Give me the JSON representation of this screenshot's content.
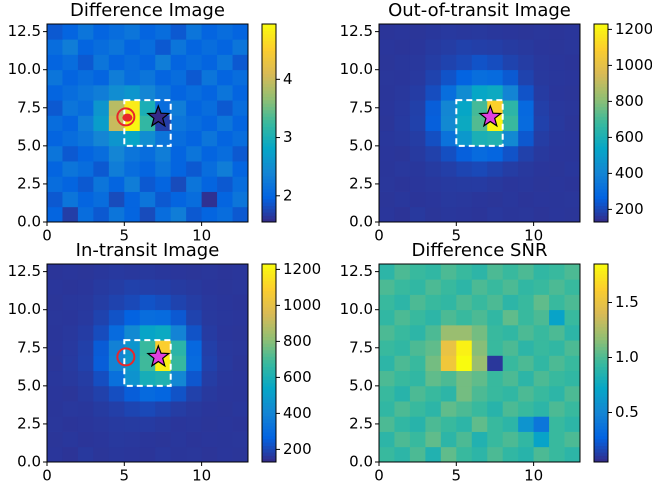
{
  "chart_data": [
    {
      "type": "heatmap",
      "title": "Difference Image",
      "colormap": "parula",
      "xlim": [
        0,
        13
      ],
      "ylim": [
        0,
        13
      ],
      "xticks": [
        0,
        5,
        10
      ],
      "yticks": [
        {
          "value": 0,
          "label": "0.0"
        },
        2.5,
        {
          "value": 5,
          "label": "5.0"
        },
        7.5,
        {
          "value": 10,
          "label": "10.0"
        },
        12.5
      ],
      "clim": [
        1.55,
        4.95
      ],
      "cticks": [
        2,
        3,
        4
      ],
      "aperture": {
        "x": [
          5,
          8
        ],
        "y": [
          5,
          8
        ],
        "color": "#ffffff"
      },
      "markers": [
        {
          "kind": "circle",
          "x": 5.1,
          "y": 6.9,
          "color": "#e8262a"
        },
        {
          "kind": "dot",
          "x": 5.2,
          "y": 6.85,
          "color": "#e8262a"
        },
        {
          "kind": "star",
          "x": 7.2,
          "y": 6.9,
          "color": "#352a87"
        }
      ],
      "z": [
        [
          2.0,
          1.7,
          2.1,
          1.9,
          2.2,
          2.0,
          1.8,
          2.1,
          2.3,
          1.9,
          2.0,
          2.1,
          1.9
        ],
        [
          1.9,
          2.2,
          2.0,
          2.1,
          1.8,
          2.0,
          2.2,
          1.9,
          2.0,
          2.1,
          1.6,
          2.0,
          2.2
        ],
        [
          2.1,
          2.0,
          1.9,
          2.2,
          2.0,
          2.3,
          1.9,
          2.0,
          1.8,
          2.2,
          2.0,
          1.9,
          2.1
        ],
        [
          2.0,
          2.2,
          2.1,
          1.9,
          2.3,
          2.1,
          2.0,
          2.2,
          2.0,
          1.9,
          2.1,
          2.3,
          2.0
        ],
        [
          2.2,
          1.9,
          2.0,
          2.1,
          2.4,
          2.2,
          2.1,
          2.3,
          2.0,
          2.2,
          2.0,
          2.1,
          1.9
        ],
        [
          2.0,
          2.1,
          2.2,
          2.4,
          2.6,
          2.8,
          2.5,
          2.2,
          2.1,
          2.0,
          2.2,
          2.0,
          2.1
        ],
        [
          2.1,
          2.0,
          2.3,
          2.7,
          4.0,
          4.9,
          3.2,
          1.7,
          2.2,
          2.1,
          2.0,
          2.2,
          2.0
        ],
        [
          1.9,
          2.2,
          2.1,
          2.6,
          3.9,
          4.8,
          3.0,
          2.1,
          2.3,
          2.0,
          2.1,
          1.9,
          2.1
        ],
        [
          2.0,
          2.1,
          2.2,
          2.3,
          2.5,
          2.6,
          2.4,
          2.2,
          2.0,
          2.1,
          2.0,
          2.2,
          2.0
        ],
        [
          2.2,
          2.0,
          2.1,
          2.0,
          2.3,
          2.1,
          2.2,
          2.0,
          2.1,
          1.9,
          2.2,
          2.0,
          2.1
        ],
        [
          2.0,
          2.1,
          1.9,
          2.2,
          2.0,
          2.1,
          2.0,
          2.3,
          2.0,
          2.1,
          2.0,
          2.2,
          1.9
        ],
        [
          2.1,
          2.3,
          2.0,
          2.1,
          2.2,
          2.0,
          2.1,
          1.9,
          2.2,
          2.0,
          2.1,
          2.0,
          2.2
        ],
        [
          1.9,
          2.0,
          2.2,
          2.0,
          2.1,
          2.2,
          2.0,
          2.1,
          1.9,
          2.2,
          2.0,
          2.1,
          2.0
        ]
      ]
    },
    {
      "type": "heatmap",
      "title": "Out-of-transit Image",
      "colormap": "parula",
      "xlim": [
        0,
        13
      ],
      "ylim": [
        0,
        13
      ],
      "xticks": [
        0,
        5,
        10
      ],
      "yticks": [
        {
          "value": 0,
          "label": "0.0"
        },
        2.5,
        {
          "value": 5,
          "label": "5.0"
        },
        7.5,
        {
          "value": 10,
          "label": "10.0"
        },
        12.5
      ],
      "clim": [
        130,
        1230
      ],
      "cticks": [
        200,
        400,
        600,
        800,
        1000,
        1200
      ],
      "aperture": {
        "x": [
          5,
          8
        ],
        "y": [
          5,
          8
        ],
        "color": "#ffffff"
      },
      "markers": [
        {
          "kind": "star",
          "x": 7.2,
          "y": 6.9,
          "color": "#e040e0"
        }
      ],
      "z": [
        [
          160,
          155,
          165,
          158,
          162,
          160,
          157,
          163,
          159,
          161,
          156,
          160,
          158
        ],
        [
          158,
          162,
          157,
          160,
          165,
          163,
          160,
          158,
          162,
          157,
          160,
          159,
          161
        ],
        [
          161,
          157,
          160,
          163,
          168,
          170,
          172,
          165,
          160,
          162,
          158,
          160,
          157
        ],
        [
          159,
          163,
          162,
          170,
          180,
          195,
          205,
          190,
          175,
          165,
          160,
          158,
          162
        ],
        [
          160,
          158,
          168,
          185,
          220,
          260,
          300,
          280,
          230,
          185,
          165,
          160,
          159
        ],
        [
          162,
          165,
          175,
          220,
          330,
          480,
          600,
          620,
          420,
          240,
          175,
          162,
          160
        ],
        [
          158,
          168,
          185,
          260,
          420,
          560,
          720,
          1210,
          680,
          300,
          185,
          165,
          158
        ],
        [
          160,
          166,
          182,
          255,
          410,
          540,
          700,
          1100,
          650,
          290,
          180,
          163,
          161
        ],
        [
          159,
          164,
          174,
          215,
          310,
          430,
          540,
          560,
          400,
          230,
          172,
          160,
          158
        ],
        [
          161,
          160,
          166,
          190,
          230,
          270,
          310,
          300,
          245,
          190,
          165,
          162,
          160
        ],
        [
          158,
          162,
          163,
          175,
          190,
          205,
          230,
          215,
          190,
          175,
          163,
          160,
          157
        ],
        [
          160,
          157,
          160,
          168,
          175,
          185,
          180,
          178,
          170,
          165,
          160,
          158,
          161
        ],
        [
          157,
          160,
          158,
          162,
          166,
          163,
          165,
          162,
          160,
          158,
          161,
          157,
          160
        ]
      ]
    },
    {
      "type": "heatmap",
      "title": "In-transit Image",
      "colormap": "parula",
      "xlim": [
        0,
        13
      ],
      "ylim": [
        0,
        13
      ],
      "xticks": [
        0,
        5,
        10
      ],
      "yticks": [
        {
          "value": 0,
          "label": "0.0"
        },
        2.5,
        {
          "value": 5,
          "label": "5.0"
        },
        7.5,
        {
          "value": 10,
          "label": "10.0"
        },
        12.5
      ],
      "clim": [
        130,
        1230
      ],
      "cticks": [
        200,
        400,
        600,
        800,
        1000,
        1200
      ],
      "aperture": {
        "x": [
          5,
          8
        ],
        "y": [
          5,
          8
        ],
        "color": "#ffffff"
      },
      "markers": [
        {
          "kind": "circle",
          "x": 5.1,
          "y": 6.9,
          "color": "#e8262a"
        },
        {
          "kind": "star",
          "x": 7.2,
          "y": 6.9,
          "color": "#e040e0"
        }
      ],
      "z": [
        [
          160,
          155,
          165,
          158,
          162,
          160,
          157,
          163,
          159,
          161,
          156,
          160,
          158
        ],
        [
          158,
          162,
          157,
          160,
          165,
          163,
          160,
          158,
          162,
          157,
          160,
          159,
          161
        ],
        [
          161,
          157,
          160,
          163,
          168,
          170,
          172,
          165,
          160,
          162,
          158,
          160,
          157
        ],
        [
          159,
          163,
          162,
          170,
          180,
          195,
          205,
          190,
          175,
          165,
          160,
          158,
          162
        ],
        [
          160,
          158,
          168,
          185,
          218,
          255,
          295,
          278,
          228,
          185,
          165,
          160,
          159
        ],
        [
          162,
          165,
          175,
          218,
          320,
          460,
          590,
          615,
          415,
          238,
          175,
          162,
          160
        ],
        [
          158,
          168,
          185,
          255,
          400,
          480,
          690,
          1200,
          675,
          298,
          185,
          165,
          158
        ],
        [
          160,
          166,
          182,
          250,
          390,
          470,
          680,
          1090,
          645,
          288,
          180,
          163,
          161
        ],
        [
          159,
          164,
          174,
          212,
          300,
          420,
          530,
          555,
          398,
          228,
          172,
          160,
          158
        ],
        [
          161,
          160,
          166,
          190,
          228,
          268,
          308,
          298,
          244,
          190,
          165,
          162,
          160
        ],
        [
          158,
          162,
          163,
          175,
          190,
          205,
          228,
          214,
          190,
          175,
          163,
          160,
          157
        ],
        [
          160,
          157,
          160,
          168,
          175,
          185,
          180,
          178,
          170,
          165,
          160,
          158,
          161
        ],
        [
          157,
          160,
          158,
          162,
          166,
          163,
          165,
          162,
          160,
          158,
          161,
          157,
          160
        ]
      ]
    },
    {
      "type": "heatmap",
      "title": "Difference SNR",
      "colormap": "parula",
      "xlim": [
        0,
        13
      ],
      "ylim": [
        0,
        13
      ],
      "xticks": [
        0,
        5,
        10
      ],
      "yticks": [
        {
          "value": 0,
          "label": "0.0"
        },
        2.5,
        {
          "value": 5,
          "label": "5.0"
        },
        7.5,
        {
          "value": 10,
          "label": "10.0"
        },
        12.5
      ],
      "clim": [
        0.05,
        1.85
      ],
      "cticks": [
        0.5,
        {
          "value": 1,
          "label": "1.0"
        },
        1.5
      ],
      "markers": [],
      "z": [
        [
          0.95,
          0.9,
          1.0,
          0.85,
          1.05,
          0.95,
          0.9,
          1.0,
          0.92,
          0.88,
          1.0,
          0.95,
          0.9
        ],
        [
          0.9,
          1.0,
          0.95,
          1.05,
          0.9,
          1.0,
          0.85,
          0.95,
          1.0,
          0.92,
          0.7,
          0.95,
          1.0
        ],
        [
          1.0,
          0.92,
          0.88,
          1.0,
          0.95,
          0.9,
          1.05,
          0.95,
          0.9,
          0.6,
          0.4,
          0.95,
          0.9
        ],
        [
          0.92,
          1.0,
          0.95,
          0.9,
          1.05,
          1.0,
          0.95,
          0.88,
          1.0,
          0.95,
          0.9,
          1.0,
          0.95
        ],
        [
          0.95,
          0.88,
          1.0,
          0.95,
          0.9,
          1.1,
          1.0,
          0.95,
          0.92,
          1.0,
          0.95,
          0.9,
          1.0
        ],
        [
          1.0,
          0.95,
          0.92,
          1.05,
          1.0,
          1.1,
          1.05,
          0.95,
          1.0,
          0.9,
          1.0,
          0.95,
          0.92
        ],
        [
          0.9,
          1.0,
          0.95,
          1.1,
          1.55,
          1.85,
          1.2,
          0.1,
          0.95,
          1.0,
          0.92,
          1.0,
          0.95
        ],
        [
          0.95,
          0.92,
          1.0,
          1.05,
          1.5,
          1.8,
          1.15,
          0.95,
          1.0,
          0.9,
          0.95,
          0.92,
          1.0
        ],
        [
          1.0,
          0.95,
          0.9,
          1.0,
          1.2,
          1.2,
          1.1,
          0.95,
          0.92,
          1.0,
          0.95,
          1.0,
          0.9
        ],
        [
          0.92,
          1.0,
          0.95,
          0.9,
          1.0,
          0.95,
          1.0,
          0.92,
          1.05,
          0.95,
          1.0,
          0.7,
          0.95
        ],
        [
          0.95,
          0.9,
          1.0,
          0.95,
          0.92,
          1.0,
          0.95,
          1.0,
          0.9,
          0.95,
          1.05,
          0.95,
          1.0
        ],
        [
          1.0,
          0.95,
          0.92,
          1.0,
          0.95,
          0.9,
          1.0,
          0.95,
          1.0,
          0.92,
          0.95,
          1.0,
          0.95
        ],
        [
          0.9,
          1.0,
          0.95,
          0.92,
          1.0,
          0.95,
          0.9,
          1.0,
          0.95,
          1.0,
          0.92,
          0.95,
          1.0
        ]
      ]
    }
  ]
}
